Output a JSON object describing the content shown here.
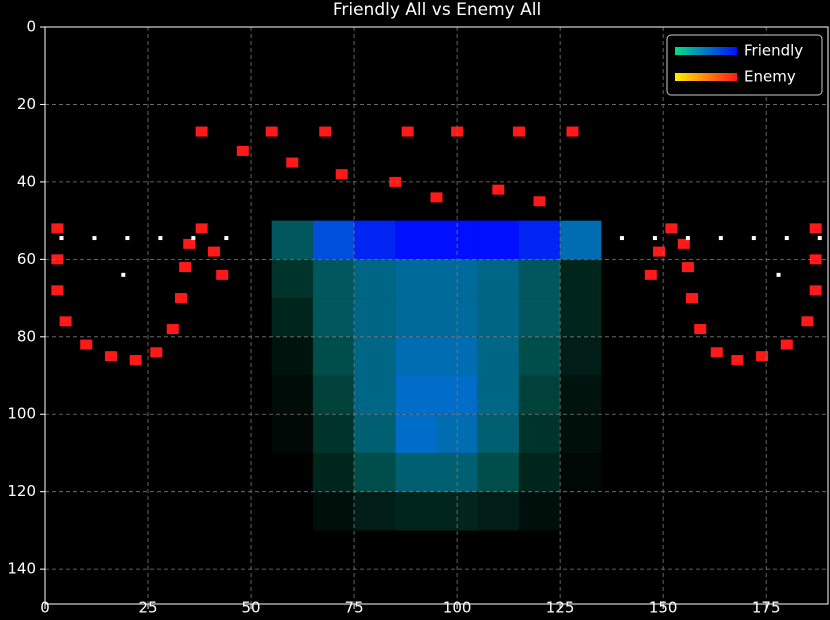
{
  "chart_data": {
    "type": "heatmap",
    "title": "Friendly All vs Enemy All",
    "xlim": [
      0,
      190
    ],
    "ylim": [
      0,
      149
    ],
    "y_inverted": true,
    "xticks": [
      0,
      25,
      50,
      75,
      100,
      125,
      150,
      175
    ],
    "yticks": [
      0,
      20,
      40,
      60,
      80,
      100,
      120,
      140
    ],
    "grid": true,
    "legend": "upper right",
    "series": [
      {
        "name": "Friendly",
        "colors": [
          "#00e08a",
          "#0010ff"
        ],
        "xbins": [
          55,
          65,
          75,
          85,
          95,
          105,
          115,
          125,
          135
        ],
        "ybins": [
          50,
          60,
          70,
          80,
          90,
          100,
          110,
          120,
          130
        ],
        "values": [
          [
            0.3,
            0.7,
            0.9,
            1,
            1,
            1,
            0.9,
            0.5
          ],
          [
            0.15,
            0.3,
            0.4,
            0.45,
            0.45,
            0.4,
            0.3,
            0.1
          ],
          [
            0.1,
            0.3,
            0.4,
            0.45,
            0.45,
            0.4,
            0.3,
            0.1
          ],
          [
            0.05,
            0.25,
            0.4,
            0.5,
            0.5,
            0.4,
            0.25,
            0.08
          ],
          [
            0.03,
            0.2,
            0.4,
            0.55,
            0.55,
            0.4,
            0.2,
            0.05
          ],
          [
            0.02,
            0.15,
            0.35,
            0.55,
            0.5,
            0.35,
            0.15,
            0.04
          ],
          [
            0,
            0.1,
            0.25,
            0.35,
            0.35,
            0.25,
            0.1,
            0.02
          ],
          [
            0,
            0.04,
            0.08,
            0.1,
            0.1,
            0.08,
            0.04,
            0
          ]
        ]
      },
      {
        "name": "Enemy",
        "colors": [
          "#ffee00",
          "#ff1a1a"
        ],
        "x": [
          3,
          3,
          3,
          5,
          10,
          16,
          22,
          27,
          31,
          33,
          34,
          35,
          38,
          41,
          43,
          187,
          187,
          187,
          185,
          180,
          174,
          168,
          163,
          159,
          157,
          156,
          155,
          152,
          149,
          147,
          38,
          55,
          68,
          88,
          100,
          115,
          128,
          48,
          60,
          72,
          85,
          95,
          110,
          120
        ],
        "y": [
          52,
          60,
          68,
          76,
          82,
          85,
          86,
          84,
          78,
          70,
          62,
          56,
          52,
          58,
          64,
          52,
          60,
          68,
          76,
          82,
          85,
          86,
          84,
          78,
          70,
          62,
          56,
          52,
          58,
          64,
          27,
          27,
          27,
          27,
          27,
          27,
          27,
          32,
          35,
          38,
          40,
          44,
          42,
          45
        ]
      }
    ],
    "markers": {
      "color": "#ffffff",
      "x": [
        4,
        12,
        20,
        28,
        36,
        44,
        140,
        148,
        156,
        164,
        172,
        180,
        188,
        19,
        178
      ],
      "y": [
        54.5,
        54.5,
        54.5,
        54.5,
        54.5,
        54.5,
        54.5,
        54.5,
        54.5,
        54.5,
        54.5,
        54.5,
        54.5,
        64,
        64
      ]
    }
  }
}
